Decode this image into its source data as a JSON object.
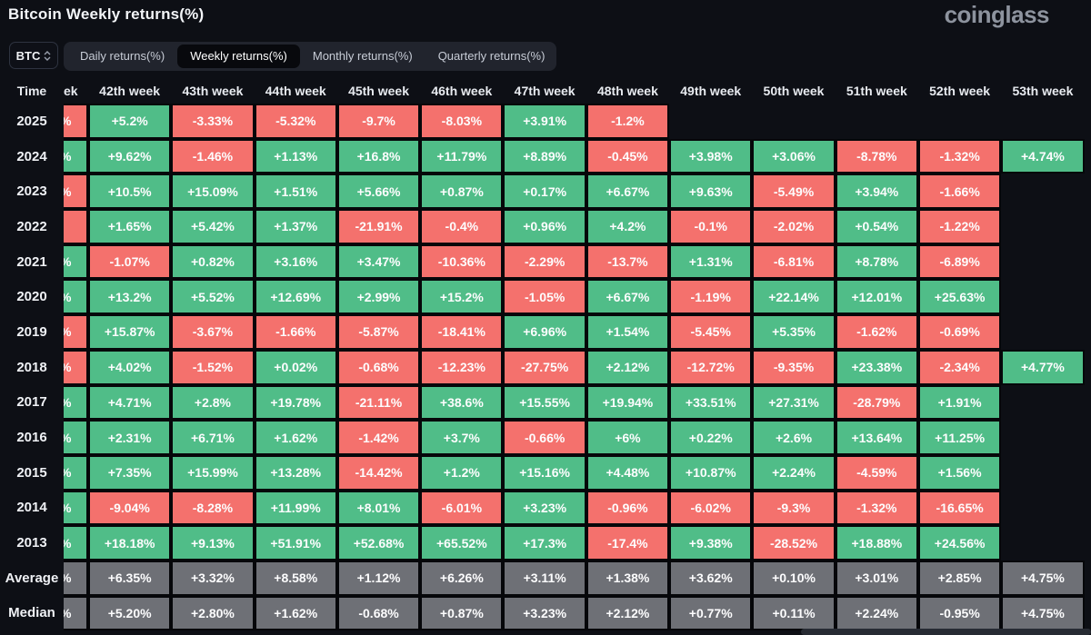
{
  "header": {
    "title": "Bitcoin Weekly returns(%)",
    "logo": "coinglass"
  },
  "controls": {
    "symbol_select": {
      "value": "BTC",
      "icon": "select-updown-chevron-icon"
    },
    "tabs": [
      {
        "label": "Daily returns(%)",
        "active": false
      },
      {
        "label": "Weekly returns(%)",
        "active": true
      },
      {
        "label": "Monthly returns(%)",
        "active": false
      },
      {
        "label": "Quarterly returns(%)",
        "active": false
      }
    ]
  },
  "colors": {
    "positive": "#50bd88",
    "negative": "#f4716d",
    "neutral": "#6e7076",
    "grid_line": "#06070a",
    "background": "#0d0f15"
  },
  "chart_data": {
    "type": "heatmap",
    "title": "Bitcoin Weekly returns(%)",
    "time_header": "Time",
    "partial_week_header": "ek",
    "week_headers": [
      "42th week",
      "43th week",
      "44th week",
      "45th week",
      "46th week",
      "47th week",
      "48th week",
      "49th week",
      "50th week",
      "51th week",
      "52th week",
      "53th week"
    ],
    "rows": [
      {
        "label": "2025",
        "kind": "year",
        "partial": {
          "color": "negative",
          "text": "%"
        },
        "cells": [
          "+5.2%",
          "-3.33%",
          "-5.32%",
          "-9.7%",
          "-8.03%",
          "+3.91%",
          "-1.2%",
          null,
          null,
          null,
          null,
          null
        ]
      },
      {
        "label": "2024",
        "kind": "year",
        "partial": {
          "color": "positive",
          "text": "%"
        },
        "cells": [
          "+9.62%",
          "-1.46%",
          "+1.13%",
          "+16.8%",
          "+11.79%",
          "+8.89%",
          "-0.45%",
          "+3.98%",
          "+3.06%",
          "-8.78%",
          "-1.32%",
          "+4.74%"
        ]
      },
      {
        "label": "2023",
        "kind": "year",
        "partial": {
          "color": "negative",
          "text": "%"
        },
        "cells": [
          "+10.5%",
          "+15.09%",
          "+1.51%",
          "+5.66%",
          "+0.87%",
          "+0.17%",
          "+6.67%",
          "+9.63%",
          "-5.49%",
          "+3.94%",
          "-1.66%",
          null
        ]
      },
      {
        "label": "2022",
        "kind": "year",
        "partial": {
          "color": "negative",
          "text": ""
        },
        "cells": [
          "+1.65%",
          "+5.42%",
          "+1.37%",
          "-21.91%",
          "-0.4%",
          "+0.96%",
          "+4.2%",
          "-0.1%",
          "-2.02%",
          "+0.54%",
          "-1.22%",
          null
        ]
      },
      {
        "label": "2021",
        "kind": "year",
        "partial": {
          "color": "positive",
          "text": "%"
        },
        "cells": [
          "-1.07%",
          "+0.82%",
          "+3.16%",
          "+3.47%",
          "-10.36%",
          "-2.29%",
          "-13.7%",
          "+1.31%",
          "-6.81%",
          "+8.78%",
          "-6.89%",
          null
        ]
      },
      {
        "label": "2020",
        "kind": "year",
        "partial": {
          "color": "positive",
          "text": "%"
        },
        "cells": [
          "+13.2%",
          "+5.52%",
          "+12.69%",
          "+2.99%",
          "+15.2%",
          "-1.05%",
          "+6.67%",
          "-1.19%",
          "+22.14%",
          "+12.01%",
          "+25.63%",
          null
        ]
      },
      {
        "label": "2019",
        "kind": "year",
        "partial": {
          "color": "negative",
          "text": "%"
        },
        "cells": [
          "+15.87%",
          "-3.67%",
          "-1.66%",
          "-5.87%",
          "-18.41%",
          "+6.96%",
          "+1.54%",
          "-5.45%",
          "+5.35%",
          "-1.62%",
          "-0.69%",
          null
        ]
      },
      {
        "label": "2018",
        "kind": "year",
        "partial": {
          "color": "negative",
          "text": "%"
        },
        "cells": [
          "+4.02%",
          "-1.52%",
          "+0.02%",
          "-0.68%",
          "-12.23%",
          "-27.75%",
          "+2.12%",
          "-12.72%",
          "-9.35%",
          "+23.38%",
          "-2.34%",
          "+4.77%"
        ]
      },
      {
        "label": "2017",
        "kind": "year",
        "partial": {
          "color": "positive",
          "text": "%"
        },
        "cells": [
          "+4.71%",
          "+2.8%",
          "+19.78%",
          "-21.11%",
          "+38.6%",
          "+15.55%",
          "+19.94%",
          "+33.51%",
          "+27.31%",
          "-28.79%",
          "+1.91%",
          null
        ]
      },
      {
        "label": "2016",
        "kind": "year",
        "partial": {
          "color": "positive",
          "text": "%"
        },
        "cells": [
          "+2.31%",
          "+6.71%",
          "+1.62%",
          "-1.42%",
          "+3.7%",
          "-0.66%",
          "+6%",
          "+0.22%",
          "+2.6%",
          "+13.64%",
          "+11.25%",
          null
        ]
      },
      {
        "label": "2015",
        "kind": "year",
        "partial": {
          "color": "positive",
          "text": "%"
        },
        "cells": [
          "+7.35%",
          "+15.99%",
          "+13.28%",
          "-14.42%",
          "+1.2%",
          "+15.16%",
          "+4.48%",
          "+10.87%",
          "+2.24%",
          "-4.59%",
          "+1.56%",
          null
        ]
      },
      {
        "label": "2014",
        "kind": "year",
        "partial": {
          "color": "positive",
          "text": "%"
        },
        "cells": [
          "-9.04%",
          "-8.28%",
          "+11.99%",
          "+8.01%",
          "-6.01%",
          "+3.23%",
          "-0.96%",
          "-6.02%",
          "-9.3%",
          "-1.32%",
          "-16.65%",
          null
        ]
      },
      {
        "label": "2013",
        "kind": "year",
        "partial": {
          "color": "positive",
          "text": "%"
        },
        "cells": [
          "+18.18%",
          "+9.13%",
          "+51.91%",
          "+52.68%",
          "+65.52%",
          "+17.3%",
          "-17.4%",
          "+9.38%",
          "-28.52%",
          "+18.88%",
          "+24.56%",
          null
        ]
      },
      {
        "label": "Average",
        "kind": "stat",
        "partial": {
          "color": "neutral",
          "text": "%"
        },
        "cells": [
          "+6.35%",
          "+3.32%",
          "+8.58%",
          "+1.12%",
          "+6.26%",
          "+3.11%",
          "+1.38%",
          "+3.62%",
          "+0.10%",
          "+3.01%",
          "+2.85%",
          "+4.75%"
        ]
      },
      {
        "label": "Median",
        "kind": "stat",
        "partial": {
          "color": "neutral",
          "text": "%"
        },
        "cells": [
          "+5.20%",
          "+2.80%",
          "+1.62%",
          "-0.68%",
          "+0.87%",
          "+3.23%",
          "+2.12%",
          "+0.77%",
          "+0.11%",
          "+2.24%",
          "-0.95%",
          "+4.75%"
        ]
      }
    ]
  }
}
